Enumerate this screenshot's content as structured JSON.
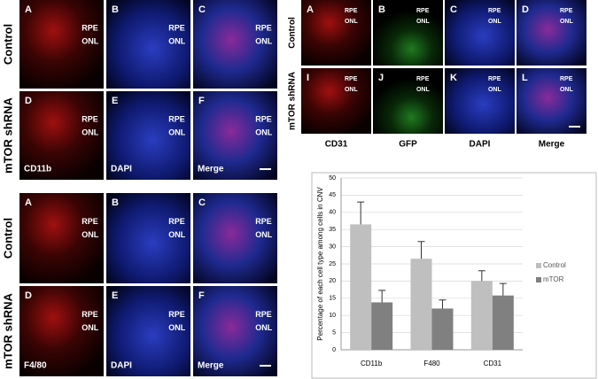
{
  "panel_groups": [
    {
      "row_labels": [
        "Control",
        "mTOR shRNA"
      ],
      "panel_letters": [
        [
          "A",
          "B",
          "C"
        ],
        [
          "D",
          "E",
          "F"
        ]
      ],
      "channel_labels": [
        "CD11b",
        "DAPI",
        "Merge"
      ],
      "layer_labels": [
        "RPE",
        "ONL"
      ]
    },
    {
      "row_labels": [
        "Control",
        "mTOR shRNA"
      ],
      "panel_letters": [
        [
          "A",
          "B",
          "C"
        ],
        [
          "D",
          "E",
          "F"
        ]
      ],
      "channel_labels": [
        "F4/80",
        "DAPI",
        "Merge"
      ],
      "layer_labels": [
        "RPE",
        "ONL"
      ]
    },
    {
      "row_labels": [
        "Control",
        "mTOR shRNA"
      ],
      "panel_letters": [
        [
          "A",
          "B",
          "C",
          "D"
        ],
        [
          "I",
          "J",
          "K",
          "L"
        ]
      ],
      "channel_labels": [
        "CD31",
        "GFP",
        "DAPI",
        "Merge"
      ],
      "layer_labels": [
        "RPE",
        "ONL"
      ]
    }
  ],
  "chart_data": {
    "type": "bar",
    "y_label": "Percentage of each cell type among cells in CNV",
    "categories": [
      "CD11b",
      "F480",
      "CD31"
    ],
    "series": [
      {
        "name": "Control",
        "color": "#bfbfbf",
        "values": [
          36.5,
          26.5,
          20
        ],
        "errors": [
          6.5,
          5,
          3
        ]
      },
      {
        "name": "mTOR",
        "color": "#808080",
        "values": [
          13.8,
          12,
          15.8
        ],
        "errors": [
          3.5,
          2.5,
          3.5
        ]
      }
    ],
    "ylim": [
      0,
      50
    ],
    "yticks": [
      0,
      5,
      10,
      15,
      20,
      25,
      30,
      35,
      40,
      45,
      50
    ],
    "grid": true,
    "legend": "right"
  }
}
